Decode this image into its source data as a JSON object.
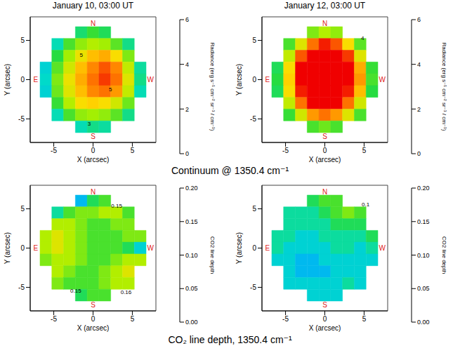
{
  "row_captions": [
    "Continuum @ 1350.4 cm⁻¹",
    "CO₂ line depth, 1350.4 cm⁻¹"
  ],
  "chart_data": [
    {
      "type": "heatmap",
      "title": "January 10, 03:00 UT",
      "x_label": "X (arcsec)",
      "y_label": "Y (arcsec)",
      "xlim": [
        -8,
        8
      ],
      "ylim": [
        -8,
        8
      ],
      "xticks": [
        -5,
        0,
        5
      ],
      "yticks": [
        -5,
        0,
        5
      ],
      "x": [
        -6,
        -4.5,
        -3,
        -1.5,
        0,
        1.5,
        3,
        4.5,
        6
      ],
      "y": [
        6,
        4.5,
        3,
        1.5,
        0,
        -1.5,
        -3,
        -4.5,
        -6
      ],
      "cells": [
        [
          null,
          null,
          null,
          3.5,
          3.8,
          3.6,
          null,
          null,
          null
        ],
        [
          null,
          3.2,
          3.9,
          4.3,
          4.5,
          4.4,
          4.0,
          3.4,
          null
        ],
        [
          null,
          3.7,
          4.4,
          4.9,
          5.2,
          5.3,
          5.0,
          4.2,
          null
        ],
        [
          3.0,
          4.0,
          4.7,
          5.2,
          5.5,
          5.7,
          5.5,
          4.6,
          3.3
        ],
        [
          3.1,
          4.2,
          4.9,
          5.3,
          5.6,
          5.8,
          5.6,
          4.8,
          3.4
        ],
        [
          3.0,
          4.1,
          4.8,
          5.2,
          5.5,
          5.6,
          5.4,
          4.6,
          3.2
        ],
        [
          null,
          3.8,
          4.5,
          5.0,
          5.1,
          5.0,
          4.7,
          4.1,
          null
        ],
        [
          null,
          3.2,
          3.9,
          4.3,
          4.4,
          4.3,
          4.0,
          3.4,
          null
        ],
        [
          null,
          null,
          null,
          3.2,
          3.4,
          3.3,
          null,
          null,
          null
        ]
      ],
      "colorbar": {
        "label": "Radiance (erg s⁻¹ cm⁻² sr⁻¹ / cm⁻¹)",
        "range": [
          0,
          6
        ],
        "ticks": [
          0,
          2,
          4,
          6
        ]
      },
      "compass": [
        {
          "label": "N",
          "x": 0,
          "y": 7.2
        },
        {
          "label": "S",
          "x": 0,
          "y": -7.2
        },
        {
          "label": "E",
          "x": -7.3,
          "y": 0
        },
        {
          "label": "W",
          "x": 7.3,
          "y": 0
        }
      ],
      "annotations": [
        {
          "text": "5",
          "x": -1.5,
          "y": 3.2
        },
        {
          "text": "5",
          "x": 2.2,
          "y": -1.2
        },
        {
          "text": "3",
          "x": -0.5,
          "y": -5.6
        }
      ]
    },
    {
      "type": "heatmap",
      "title": "January 12, 03:00 UT",
      "x_label": "X (arcsec)",
      "y_label": "Y (arcsec)",
      "xlim": [
        -8,
        8
      ],
      "ylim": [
        -8,
        8
      ],
      "xticks": [
        -5,
        0,
        5
      ],
      "yticks": [
        -5,
        0,
        5
      ],
      "x": [
        -6,
        -4.5,
        -3,
        -1.5,
        0,
        1.5,
        3,
        4.5,
        6
      ],
      "y": [
        6,
        4.5,
        3,
        1.5,
        0,
        -1.5,
        -3,
        -4.5,
        -6
      ],
      "cells": [
        [
          null,
          null,
          null,
          4.2,
          4.5,
          4.3,
          null,
          null,
          null
        ],
        [
          null,
          3.9,
          4.8,
          5.6,
          5.9,
          5.7,
          5.0,
          4.0,
          null
        ],
        [
          null,
          4.6,
          5.7,
          6.0,
          6.0,
          6.0,
          5.8,
          4.8,
          null
        ],
        [
          3.6,
          5.0,
          6.0,
          6.0,
          6.0,
          6.0,
          6.0,
          5.3,
          3.8
        ],
        [
          3.7,
          5.1,
          6.0,
          6.0,
          6.0,
          6.0,
          6.0,
          5.4,
          3.9
        ],
        [
          3.6,
          5.0,
          5.9,
          6.0,
          6.0,
          6.0,
          5.9,
          5.2,
          3.7
        ],
        [
          null,
          4.6,
          5.6,
          6.0,
          6.0,
          6.0,
          5.6,
          4.7,
          null
        ],
        [
          null,
          3.8,
          4.7,
          5.4,
          5.6,
          5.4,
          4.8,
          3.9,
          null
        ],
        [
          null,
          null,
          null,
          3.9,
          4.1,
          3.9,
          null,
          null,
          null
        ]
      ],
      "colorbar": {
        "label": "Radiance (erg s⁻¹ cm⁻² sr⁻¹ / cm⁻¹)",
        "range": [
          0,
          6
        ],
        "ticks": [
          0,
          2,
          4,
          6
        ]
      },
      "compass": [
        {
          "label": "N",
          "x": 0,
          "y": 7.2
        },
        {
          "label": "S",
          "x": 0,
          "y": -7.2
        },
        {
          "label": "E",
          "x": -7.3,
          "y": 0
        },
        {
          "label": "W",
          "x": 7.3,
          "y": 0
        }
      ],
      "annotations": [
        {
          "text": "4",
          "x": 4.8,
          "y": 5.3
        }
      ]
    },
    {
      "type": "heatmap",
      "x_label": "X (arcsec)",
      "y_label": "Y (arcsec)",
      "xlim": [
        -8,
        8
      ],
      "ylim": [
        -8,
        8
      ],
      "xticks": [
        -5,
        0,
        5
      ],
      "yticks": [
        -5,
        0,
        5
      ],
      "x": [
        -6,
        -4.5,
        -3,
        -1.5,
        0,
        1.5,
        3,
        4.5,
        6
      ],
      "y": [
        6,
        4.5,
        3,
        1.5,
        0,
        -1.5,
        -3,
        -4.5,
        -6
      ],
      "cells": [
        [
          null,
          null,
          null,
          0.09,
          0.12,
          0.13,
          null,
          null,
          null
        ],
        [
          null,
          0.11,
          0.13,
          0.14,
          0.14,
          0.15,
          0.15,
          0.13,
          null
        ],
        [
          null,
          0.15,
          0.15,
          0.14,
          0.13,
          0.13,
          0.14,
          0.14,
          null
        ],
        [
          0.15,
          0.16,
          0.15,
          0.14,
          0.13,
          0.13,
          0.13,
          0.14,
          0.14
        ],
        [
          0.15,
          0.16,
          0.15,
          0.14,
          0.13,
          0.13,
          0.13,
          0.12,
          0.1
        ],
        [
          0.14,
          0.15,
          0.15,
          0.14,
          0.13,
          0.13,
          0.14,
          0.15,
          0.15
        ],
        [
          null,
          0.15,
          0.14,
          0.13,
          0.13,
          0.14,
          0.15,
          0.16,
          null
        ],
        [
          null,
          0.14,
          0.13,
          0.13,
          0.13,
          0.14,
          0.15,
          0.15,
          null
        ],
        [
          null,
          null,
          null,
          0.12,
          0.13,
          0.13,
          null,
          null,
          null
        ]
      ],
      "colorbar": {
        "label": "CO2 line depth",
        "range": [
          0,
          0.2
        ],
        "ticks": [
          {
            "value": 0,
            "label": "0.00"
          },
          0.05,
          {
            "value": 0.1,
            "label": "0.10"
          },
          0.15,
          {
            "value": 0.2,
            "label": "0.20"
          }
        ]
      },
      "compass": [
        {
          "label": "N",
          "x": 0,
          "y": 7.2
        },
        {
          "label": "S",
          "x": 0,
          "y": -7.2
        },
        {
          "label": "E",
          "x": -7.3,
          "y": 0
        },
        {
          "label": "W",
          "x": 7.3,
          "y": 0
        }
      ],
      "annotations": [
        {
          "text": "0.15",
          "x": 3,
          "y": 5.4
        },
        {
          "text": "0.15",
          "x": -2.2,
          "y": -5.4
        },
        {
          "text": "0.16",
          "x": 4.2,
          "y": -5.6
        }
      ]
    },
    {
      "type": "heatmap",
      "x_label": "X (arcsec)",
      "y_label": "Y (arcsec)",
      "xlim": [
        -8,
        8
      ],
      "ylim": [
        -8,
        8
      ],
      "xticks": [
        -5,
        0,
        5
      ],
      "yticks": [
        -5,
        0,
        5
      ],
      "x": [
        -6,
        -4.5,
        -3,
        -1.5,
        0,
        1.5,
        3,
        4.5,
        6
      ],
      "y": [
        6,
        4.5,
        3,
        1.5,
        0,
        -1.5,
        -3,
        -4.5,
        -6
      ],
      "cells": [
        [
          null,
          null,
          null,
          0.12,
          0.13,
          0.13,
          null,
          null,
          null
        ],
        [
          null,
          0.11,
          0.11,
          0.11,
          0.12,
          0.13,
          0.14,
          0.13,
          null
        ],
        [
          null,
          0.11,
          0.11,
          0.11,
          0.11,
          0.12,
          0.12,
          0.12,
          null
        ],
        [
          0.11,
          0.11,
          0.1,
          0.1,
          0.11,
          0.11,
          0.11,
          0.11,
          0.12
        ],
        [
          0.11,
          0.1,
          0.1,
          0.1,
          0.1,
          0.11,
          0.11,
          0.1,
          0.11
        ],
        [
          0.1,
          0.1,
          0.09,
          0.09,
          0.1,
          0.1,
          0.1,
          0.1,
          0.1
        ],
        [
          null,
          0.1,
          0.09,
          0.09,
          0.09,
          0.1,
          0.1,
          0.1,
          null
        ],
        [
          null,
          0.1,
          0.1,
          0.1,
          0.1,
          0.1,
          0.11,
          0.1,
          null
        ],
        [
          null,
          null,
          null,
          0.1,
          0.1,
          0.1,
          null,
          null,
          null
        ]
      ],
      "colorbar": {
        "label": "CO2 line depth",
        "range": [
          0,
          0.2
        ],
        "ticks": [
          {
            "value": 0,
            "label": "0.00"
          },
          0.05,
          {
            "value": 0.1,
            "label": "0.10"
          },
          0.15,
          {
            "value": 0.2,
            "label": "0.20"
          }
        ]
      },
      "compass": [
        {
          "label": "N",
          "x": 0,
          "y": 7.2
        },
        {
          "label": "S",
          "x": 0,
          "y": -7.2
        },
        {
          "label": "E",
          "x": -7.3,
          "y": 0
        },
        {
          "label": "W",
          "x": 7.3,
          "y": 0
        }
      ],
      "annotations": [
        {
          "text": "0.1",
          "x": 5.2,
          "y": 5.6
        }
      ]
    }
  ]
}
